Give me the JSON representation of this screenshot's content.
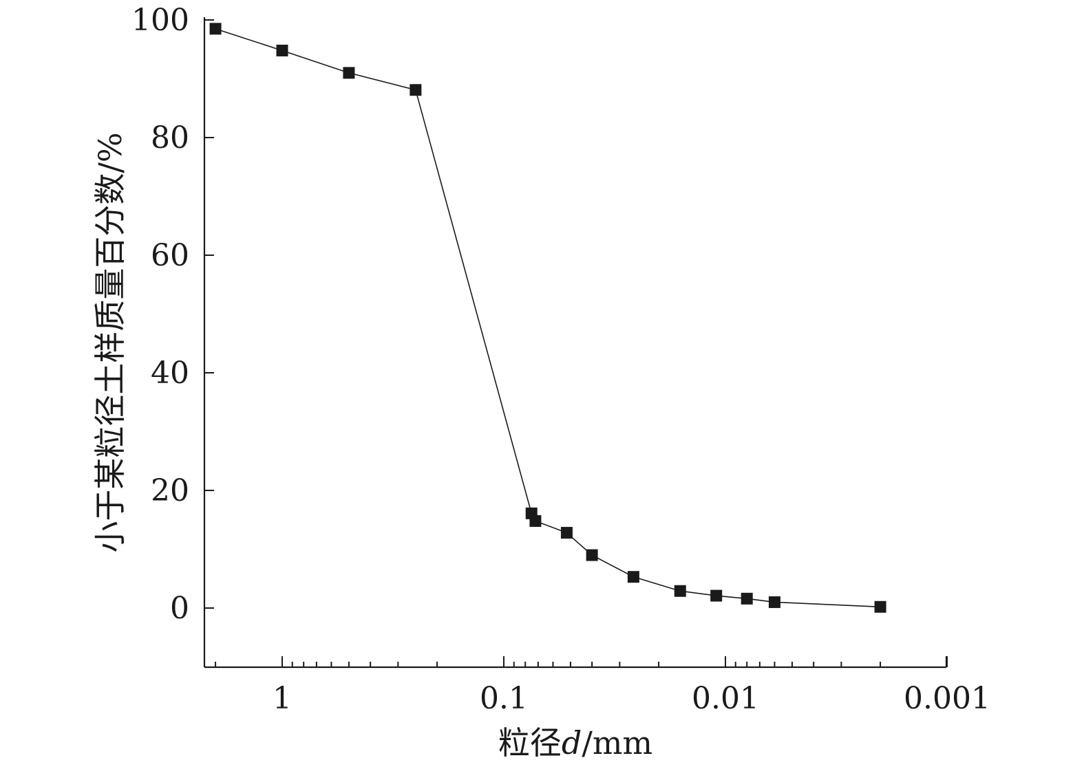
{
  "chart_data": {
    "type": "line",
    "x_scale": "log-reversed",
    "xlabel_prefix": "粒径",
    "xlabel_var": "d",
    "xlabel_unit": "/mm",
    "ylabel": "小于某粒径土样质量百分数/%",
    "xlim": [
      2,
      0.001
    ],
    "ylim": [
      -10,
      100
    ],
    "x_ticks": [
      1,
      0.1,
      0.01,
      0.001
    ],
    "x_tick_labels": [
      "1",
      "0.1",
      "0.01",
      "0.001"
    ],
    "y_ticks": [
      0,
      20,
      40,
      60,
      80,
      100
    ],
    "y_tick_labels": [
      "0",
      "20",
      "40",
      "60",
      "80",
      "100"
    ],
    "grid": false,
    "series": [
      {
        "x": [
          2,
          1,
          0.5,
          0.25,
          0.075,
          0.072,
          0.052,
          0.04,
          0.026,
          0.016,
          0.011,
          0.008,
          0.006,
          0.002
        ],
        "y": [
          98.5,
          94.8,
          91,
          88.1,
          16.1,
          14.8,
          12.8,
          9,
          5.3,
          2.9,
          2.1,
          1.6,
          1,
          0.2
        ],
        "color": "#1a1a1a",
        "marker": "square"
      }
    ]
  }
}
